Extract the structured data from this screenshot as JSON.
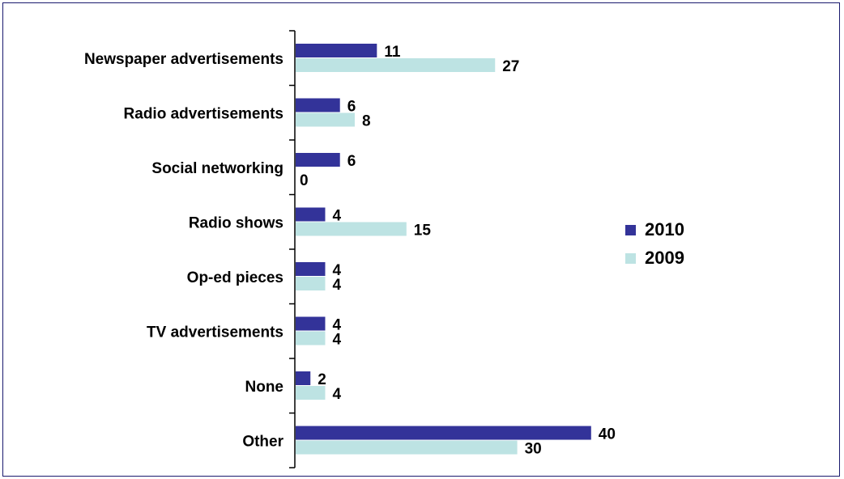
{
  "chart_data": {
    "type": "bar",
    "orientation": "horizontal",
    "categories": [
      "Newspaper advertisements",
      "Radio advertisements",
      "Social networking",
      "Radio shows",
      "Op-ed pieces",
      "TV advertisements",
      "None",
      "Other"
    ],
    "series": [
      {
        "name": "2010",
        "color": "#333399",
        "values": [
          11,
          6,
          6,
          4,
          4,
          4,
          2,
          40
        ]
      },
      {
        "name": "2009",
        "color": "#bde3e3",
        "values": [
          27,
          8,
          0,
          15,
          4,
          4,
          4,
          30
        ]
      }
    ],
    "xlim": [
      0,
      46
    ],
    "data_labels": true,
    "grid": false,
    "legend": "right"
  }
}
